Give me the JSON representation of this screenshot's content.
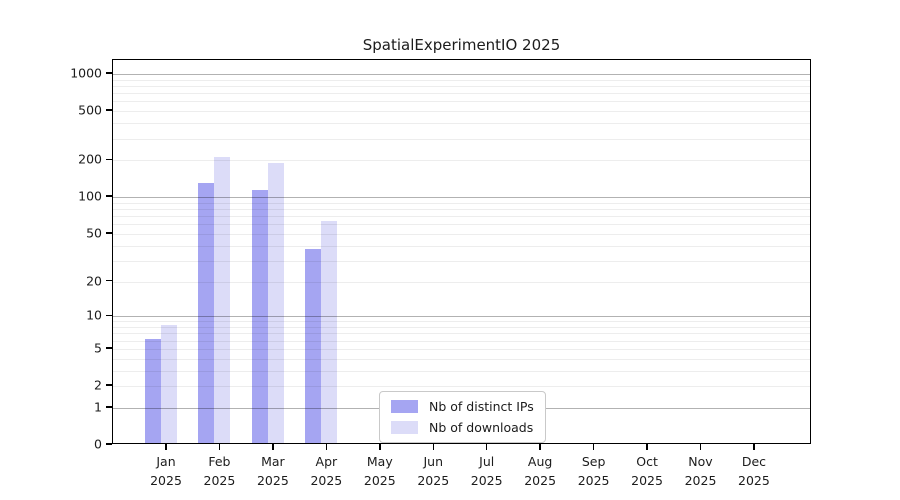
{
  "chart_data": {
    "type": "bar",
    "title": "SpatialExperimentIO 2025",
    "categories": [
      "Jan 2025",
      "Feb 2025",
      "Mar 2025",
      "Apr 2025",
      "May 2025",
      "Jun 2025",
      "Jul 2025",
      "Aug 2025",
      "Sep 2025",
      "Oct 2025",
      "Nov 2025",
      "Dec 2025"
    ],
    "series": [
      {
        "name": "Nb of distinct IPs",
        "color": "#a5a5f2",
        "values": [
          6,
          126,
          111,
          36,
          0,
          0,
          0,
          0,
          0,
          0,
          0,
          0
        ]
      },
      {
        "name": "Nb of downloads",
        "color": "#dcdcf8",
        "values": [
          8,
          206,
          183,
          61,
          0,
          0,
          0,
          0,
          0,
          0,
          0,
          0
        ]
      }
    ],
    "y_axis": {
      "scale": "log1p",
      "ticks": [
        0,
        1,
        2,
        5,
        10,
        20,
        50,
        100,
        200,
        500,
        1000
      ],
      "max": 1300,
      "grid": "horizontal-only, log minor + major"
    },
    "xlabel": "",
    "ylabel": "",
    "legend_position": "inside lower-center-left"
  },
  "colors": {
    "bar_ips": "#a5a5f2",
    "bar_downloads": "#dcdcf8",
    "grid_major": "rgba(0,0,0,0.30)",
    "grid_minor": "rgba(0,0,0,0.07)",
    "axis_line": "#000000",
    "text": "#1c1c1c",
    "legend_border": "#c9c9c9"
  }
}
